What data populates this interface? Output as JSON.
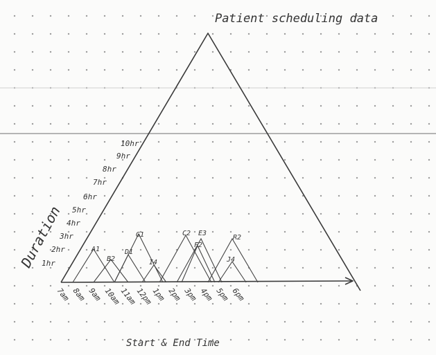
{
  "title": "Patient scheduling data",
  "y_axis": {
    "label": "Duration",
    "ticks": [
      "1hr",
      "2hr",
      "3hr",
      "4hr",
      "5hr",
      "6hr",
      "7hr",
      "8hr",
      "9hr",
      "10hr"
    ]
  },
  "x_axis": {
    "label": "Start & End Time",
    "ticks": [
      "7am",
      "8am",
      "9am",
      "10am",
      "11am",
      "12pm",
      "1pm",
      "2pm",
      "3pm",
      "4pm",
      "5pm",
      "6pm"
    ]
  },
  "appointments": [
    "A1",
    "B2",
    "D1",
    "G1",
    "I4",
    "C2",
    "E3",
    "F2",
    "R2",
    "J4"
  ]
}
